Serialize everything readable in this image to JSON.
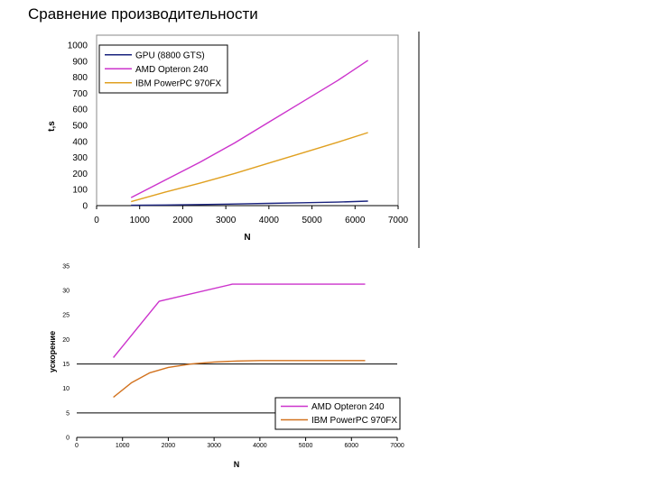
{
  "slide": {
    "title": "Сравнение производительности"
  },
  "chart_data": [
    {
      "type": "line",
      "title": "",
      "xlabel": "N",
      "ylabel": "t,s",
      "xlim": [
        0,
        7000
      ],
      "ylim": [
        0,
        1000
      ],
      "x_ticks": [
        "0",
        "1000",
        "2000",
        "3000",
        "4000",
        "5000",
        "6000",
        "7000"
      ],
      "y_ticks": [
        "0",
        "100",
        "200",
        "300",
        "400",
        "500",
        "600",
        "700",
        "800",
        "900",
        "1000"
      ],
      "legend_position": "top-left",
      "series": [
        {
          "name": "GPU (8800 GTS)",
          "color": "#1a237e",
          "x": [
            800,
            1600,
            2400,
            3200,
            4000,
            4800,
            5600,
            6300
          ],
          "values": [
            2,
            4,
            7,
            10,
            14,
            18,
            22,
            28
          ]
        },
        {
          "name": "AMD Opteron 240",
          "color": "#cc33cc",
          "x": [
            800,
            1600,
            2400,
            3200,
            4000,
            4800,
            5600,
            6300
          ],
          "values": [
            50,
            160,
            270,
            390,
            520,
            650,
            780,
            905
          ]
        },
        {
          "name": "IBM PowerPC 970FX",
          "color": "#e0a020",
          "x": [
            800,
            1600,
            2400,
            3200,
            4000,
            4800,
            5600,
            6300
          ],
          "values": [
            25,
            85,
            140,
            200,
            265,
            330,
            395,
            455
          ]
        }
      ]
    },
    {
      "type": "line",
      "title": "",
      "xlabel": "N",
      "ylabel": "ускорение",
      "xlim": [
        0,
        7000
      ],
      "ylim": [
        0,
        35
      ],
      "x_ticks": [
        "0",
        "1000",
        "2000",
        "3000",
        "4000",
        "5000",
        "6000",
        "7000"
      ],
      "y_ticks": [
        "0",
        "5",
        "10",
        "15",
        "20",
        "25",
        "30",
        "35"
      ],
      "reference_lines": [
        15,
        5
      ],
      "legend_position": "bottom-right",
      "series": [
        {
          "name": "AMD Opteron 240",
          "color": "#cc33cc",
          "x": [
            800,
            1800,
            3400,
            6300
          ],
          "values": [
            16.3,
            27.8,
            31.3,
            31.3
          ]
        },
        {
          "name": "IBM PowerPC 970FX",
          "color": "#d2721e",
          "x": [
            800,
            1200,
            1600,
            2000,
            2500,
            3000,
            3500,
            4000,
            5000,
            6300
          ],
          "values": [
            8.2,
            11.2,
            13.2,
            14.3,
            15.0,
            15.4,
            15.6,
            15.7,
            15.7,
            15.7
          ]
        }
      ]
    }
  ]
}
